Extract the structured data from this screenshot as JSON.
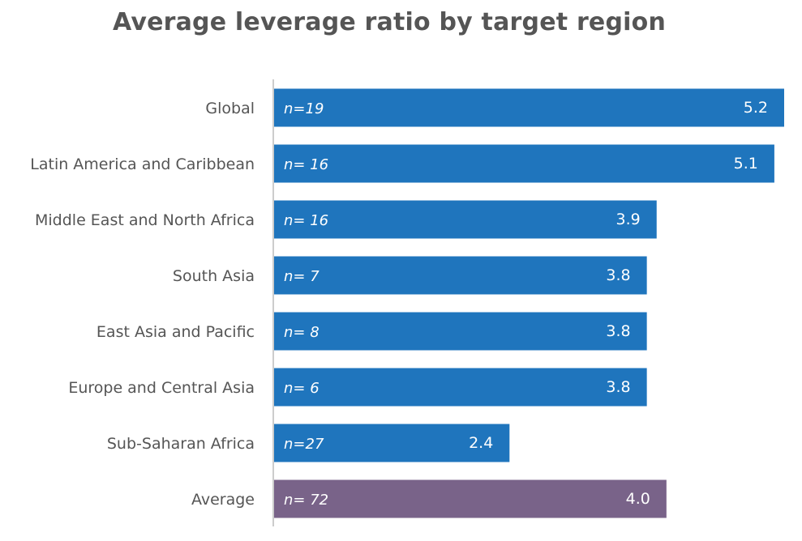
{
  "chart_data": {
    "type": "bar",
    "orientation": "horizontal",
    "title": "Average leverage ratio by target region",
    "xlabel": "",
    "ylabel": "",
    "xlim": [
      0,
      5.2
    ],
    "grid": false,
    "legend": "none",
    "categories": [
      "Global",
      "Latin America and Caribbean",
      "Middle East and North Africa",
      "South Asia",
      "East Asia and Pacific",
      "Europe and Central Asia",
      "Sub-Saharan Africa",
      "Average"
    ],
    "values": [
      5.2,
      5.1,
      3.9,
      3.8,
      3.8,
      3.8,
      2.4,
      4.0
    ],
    "value_labels": [
      "5.2",
      "5.1",
      "3.9",
      "3.8",
      "3.8",
      "3.8",
      "2.4",
      "4.0"
    ],
    "n_labels": [
      "n=19",
      "n= 16",
      "n= 16",
      "n= 7",
      "n= 8",
      "n= 6",
      "n=27",
      "n= 72"
    ],
    "colors": {
      "region": "#1f75bd",
      "average": "#796389",
      "axis": "#cccccc",
      "category_text": "#555555",
      "bar_text": "#ffffff"
    }
  }
}
